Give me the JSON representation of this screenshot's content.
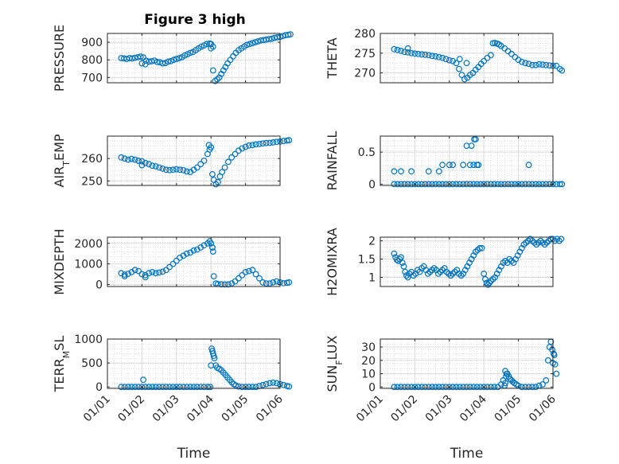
{
  "figure": {
    "title": "Figure 3 high",
    "xlabel": "Time",
    "xticks": [
      "01/01",
      "01/02",
      "01/03",
      "01/04",
      "01/05",
      "01/06"
    ],
    "marker_color": "#0072BD"
  },
  "chart_data": [
    {
      "type": "scatter",
      "ylabel": "PRESSURE",
      "ylim": [
        670,
        950
      ],
      "yticks": [
        700,
        800,
        900
      ],
      "grid": true,
      "x": [
        0.4,
        0.48,
        0.56,
        0.64,
        0.72,
        0.8,
        0.88,
        0.96,
        1.04,
        1.12,
        1.2,
        1.28,
        1.36,
        1.44,
        1.52,
        1.6,
        1.68,
        1.76,
        1.84,
        1.92,
        2.0,
        2.08,
        2.16,
        2.24,
        2.32,
        2.4,
        2.48,
        2.56,
        2.64,
        2.72,
        2.8,
        2.88,
        2.96,
        3.0,
        3.06,
        3.12,
        3.18,
        3.24,
        3.3,
        3.36,
        3.42,
        3.48,
        3.56,
        3.64,
        3.72,
        3.8,
        3.88,
        3.96,
        4.04,
        4.12,
        4.2,
        4.28,
        4.36,
        4.44,
        4.52,
        4.6,
        4.68,
        4.76,
        4.84,
        4.92,
        5.0,
        5.08,
        5.16,
        5.24,
        5.3,
        1.0,
        1.1,
        3.0,
        3.06
      ],
      "y": [
        810,
        808,
        805,
        810,
        808,
        812,
        815,
        818,
        814,
        795,
        790,
        792,
        796,
        788,
        786,
        780,
        782,
        790,
        793,
        800,
        805,
        810,
        815,
        825,
        832,
        840,
        845,
        855,
        865,
        875,
        882,
        890,
        893,
        890,
        740,
        680,
        690,
        700,
        720,
        740,
        760,
        780,
        800,
        820,
        840,
        855,
        865,
        875,
        885,
        890,
        895,
        900,
        905,
        910,
        912,
        915,
        918,
        920,
        925,
        928,
        930,
        935,
        940,
        942,
        945,
        780,
        775,
        865,
        875
      ]
    },
    {
      "type": "scatter",
      "ylabel": "THETA",
      "ylim": [
        267.5,
        280
      ],
      "yticks": [
        270,
        275,
        280
      ],
      "grid": true,
      "x": [
        0.4,
        0.5,
        0.6,
        0.7,
        0.8,
        0.9,
        1.0,
        1.1,
        1.2,
        1.3,
        1.4,
        1.5,
        1.6,
        1.7,
        1.8,
        1.9,
        2.0,
        2.1,
        2.2,
        2.28,
        2.36,
        2.44,
        2.52,
        2.6,
        2.68,
        2.76,
        2.84,
        2.92,
        3.0,
        3.1,
        3.2,
        3.26,
        3.32,
        3.38,
        3.44,
        3.5,
        3.6,
        3.7,
        3.8,
        3.9,
        4.0,
        4.1,
        4.2,
        4.3,
        4.4,
        4.5,
        4.6,
        4.7,
        4.8,
        4.9,
        5.0,
        5.1,
        5.2,
        5.26,
        0.8,
        2.3,
        2.5
      ],
      "y": [
        276.0,
        275.8,
        275.6,
        275.3,
        275.2,
        275.0,
        274.9,
        274.8,
        274.7,
        274.6,
        274.5,
        274.3,
        274.2,
        274.0,
        273.8,
        273.5,
        273.2,
        273.0,
        272.5,
        271.0,
        269.5,
        268.4,
        268.8,
        269.5,
        270.0,
        270.8,
        271.5,
        272.3,
        273.0,
        273.8,
        274.5,
        277.5,
        277.6,
        277.4,
        277.2,
        276.8,
        276.2,
        275.5,
        274.8,
        274.0,
        273.3,
        272.8,
        272.5,
        272.3,
        272.0,
        272.0,
        272.2,
        272.1,
        272.0,
        271.9,
        271.8,
        271.8,
        271.0,
        270.6,
        276.2,
        273.5,
        272.5
      ]
    },
    {
      "type": "scatter",
      "ylabel": "AIR_TEMP",
      "ylim": [
        248,
        270
      ],
      "yticks": [
        250,
        260
      ],
      "grid": true,
      "x": [
        0.4,
        0.5,
        0.6,
        0.7,
        0.8,
        0.9,
        1.0,
        1.1,
        1.2,
        1.3,
        1.4,
        1.5,
        1.6,
        1.7,
        1.8,
        1.9,
        2.0,
        2.1,
        2.2,
        2.3,
        2.4,
        2.5,
        2.6,
        2.7,
        2.8,
        2.9,
        2.96,
        3.0,
        3.04,
        3.08,
        3.14,
        3.2,
        3.26,
        3.32,
        3.4,
        3.5,
        3.6,
        3.7,
        3.8,
        3.9,
        4.0,
        4.1,
        4.2,
        4.3,
        4.4,
        4.5,
        4.6,
        4.7,
        4.8,
        4.9,
        5.0,
        5.1,
        5.2,
        5.26,
        0.9,
        1.0,
        2.94
      ],
      "y": [
        260.5,
        260.0,
        259.5,
        259.8,
        259.5,
        259.0,
        258.8,
        258.0,
        257.5,
        256.8,
        256.5,
        256.0,
        255.5,
        255.0,
        254.8,
        255.0,
        255.2,
        255.0,
        254.8,
        254.2,
        254.0,
        255.0,
        256.0,
        257.5,
        259.0,
        262.0,
        264.0,
        265.0,
        253.0,
        250.5,
        248.5,
        249.5,
        252.0,
        254.0,
        256.0,
        258.5,
        260.5,
        262.0,
        263.5,
        264.5,
        265.2,
        265.8,
        266.0,
        266.3,
        266.5,
        266.7,
        266.9,
        267.0,
        267.2,
        267.4,
        267.6,
        267.8,
        268.0,
        268.2,
        259.0,
        257.0,
        266.0
      ]
    },
    {
      "type": "scatter",
      "ylabel": "RAINFALL",
      "ylim": [
        -0.02,
        0.75
      ],
      "yticks": [
        0,
        0.5
      ],
      "grid": true,
      "x": [
        0.4,
        0.5,
        0.6,
        0.7,
        0.8,
        0.9,
        1.0,
        1.1,
        1.2,
        1.3,
        1.4,
        1.5,
        1.6,
        1.7,
        1.8,
        1.9,
        2.0,
        2.1,
        2.2,
        2.3,
        2.4,
        2.5,
        2.6,
        2.7,
        2.8,
        2.9,
        3.0,
        3.1,
        3.2,
        3.3,
        3.4,
        3.5,
        3.6,
        3.7,
        3.8,
        3.9,
        4.0,
        4.1,
        4.2,
        4.3,
        4.4,
        4.5,
        4.6,
        4.7,
        4.8,
        4.9,
        5.0,
        5.1,
        5.2,
        5.26,
        0.4,
        0.6,
        0.9,
        1.4,
        1.7,
        1.8,
        2.0,
        2.1,
        2.4,
        2.5,
        2.6,
        2.64,
        2.7,
        2.72,
        2.76,
        2.8,
        2.84,
        4.3
      ],
      "y": [
        0,
        0,
        0,
        0,
        0,
        0,
        0,
        0,
        0,
        0,
        0,
        0,
        0,
        0,
        0,
        0,
        0,
        0,
        0,
        0,
        0,
        0,
        0,
        0,
        0,
        0,
        0,
        0,
        0,
        0,
        0,
        0,
        0,
        0,
        0,
        0,
        0,
        0,
        0,
        0,
        0,
        0,
        0,
        0,
        0,
        0,
        0,
        0,
        0,
        0,
        0.2,
        0.2,
        0.2,
        0.2,
        0.2,
        0.3,
        0.3,
        0.3,
        0.3,
        0.6,
        0.3,
        0.6,
        0.3,
        0.7,
        0.7,
        0.3,
        0.3,
        0.3
      ]
    },
    {
      "type": "scatter",
      "ylabel": "MIXDEPTH",
      "ylim": [
        -100,
        2300
      ],
      "yticks": [
        0,
        1000,
        2000
      ],
      "grid": true,
      "x": [
        0.4,
        0.5,
        0.6,
        0.7,
        0.8,
        0.9,
        1.0,
        1.1,
        1.2,
        1.3,
        1.4,
        1.5,
        1.6,
        1.7,
        1.8,
        1.9,
        2.0,
        2.1,
        2.2,
        2.3,
        2.4,
        2.5,
        2.6,
        2.7,
        2.8,
        2.9,
        2.96,
        3.0,
        3.04,
        3.08,
        3.14,
        3.2,
        3.3,
        3.4,
        3.5,
        3.6,
        3.7,
        3.8,
        3.9,
        4.0,
        4.1,
        4.2,
        4.3,
        4.4,
        4.5,
        4.6,
        4.7,
        4.8,
        4.9,
        5.0,
        5.1,
        5.2,
        5.26,
        3.04,
        3.06,
        0.5,
        1.1
      ],
      "y": [
        550,
        480,
        520,
        600,
        700,
        650,
        500,
        450,
        550,
        600,
        550,
        580,
        620,
        700,
        850,
        1000,
        1150,
        1300,
        1400,
        1500,
        1550,
        1650,
        1700,
        1800,
        1900,
        2000,
        2100,
        2000,
        1800,
        400,
        50,
        20,
        10,
        0,
        0,
        50,
        150,
        300,
        450,
        600,
        650,
        700,
        500,
        300,
        100,
        50,
        50,
        100,
        150,
        100,
        60,
        80,
        100,
        1800,
        1600,
        400,
        350
      ]
    },
    {
      "type": "scatter",
      "ylabel": "H2OMIXRA",
      "ylim": [
        0.75,
        2.1
      ],
      "yticks": [
        1,
        1.5,
        2
      ],
      "grid": true,
      "x": [
        0.4,
        0.44,
        0.48,
        0.52,
        0.56,
        0.6,
        0.64,
        0.68,
        0.72,
        0.76,
        0.8,
        0.84,
        0.9,
        0.96,
        1.02,
        1.08,
        1.14,
        1.2,
        1.26,
        1.32,
        1.38,
        1.44,
        1.5,
        1.56,
        1.62,
        1.68,
        1.74,
        1.8,
        1.86,
        1.92,
        1.98,
        2.04,
        2.1,
        2.16,
        2.22,
        2.28,
        2.34,
        2.4,
        2.46,
        2.52,
        2.58,
        2.64,
        2.7,
        2.76,
        2.82,
        2.88,
        2.94,
        3.0,
        3.04,
        3.08,
        3.12,
        3.16,
        3.2,
        3.26,
        3.32,
        3.38,
        3.44,
        3.5,
        3.56,
        3.62,
        3.68,
        3.74,
        3.8,
        3.86,
        3.92,
        3.98,
        4.04,
        4.1,
        4.16,
        4.22,
        4.28,
        4.34,
        4.4,
        4.46,
        4.52,
        4.58,
        4.64,
        4.7,
        4.76,
        4.82,
        4.88,
        4.94,
        5.0,
        5.06,
        5.12,
        5.18,
        5.24
      ],
      "y": [
        1.65,
        1.55,
        1.48,
        1.45,
        1.5,
        1.55,
        1.4,
        1.3,
        1.15,
        1.05,
        1.0,
        1.1,
        1.15,
        1.05,
        1.1,
        1.2,
        1.15,
        1.25,
        1.3,
        1.2,
        1.1,
        1.15,
        1.2,
        1.25,
        1.2,
        1.1,
        1.15,
        1.2,
        1.25,
        1.15,
        1.1,
        1.05,
        1.1,
        1.15,
        1.2,
        1.1,
        1.05,
        1.1,
        1.2,
        1.3,
        1.4,
        1.5,
        1.6,
        1.7,
        1.75,
        1.8,
        1.8,
        1.1,
        0.95,
        0.85,
        0.8,
        0.85,
        0.9,
        0.95,
        1.0,
        1.1,
        1.2,
        1.3,
        1.4,
        1.45,
        1.4,
        1.5,
        1.45,
        1.4,
        1.5,
        1.6,
        1.7,
        1.8,
        1.9,
        1.95,
        2.0,
        2.05,
        2.0,
        1.95,
        1.9,
        1.95,
        2.0,
        1.95,
        1.9,
        1.95,
        2.0,
        2.05,
        2.05,
        2.0,
        2.05,
        2.0,
        2.05
      ]
    },
    {
      "type": "scatter",
      "ylabel": "TERR_MSL",
      "ylim": [
        -30,
        1000
      ],
      "yticks": [
        0,
        500,
        1000
      ],
      "grid": true,
      "x": [
        0.4,
        0.5,
        0.6,
        0.7,
        0.8,
        0.9,
        1.0,
        1.1,
        1.2,
        1.3,
        1.4,
        1.5,
        1.6,
        1.7,
        1.8,
        1.9,
        2.0,
        2.1,
        2.2,
        2.3,
        2.4,
        2.5,
        2.6,
        2.7,
        2.8,
        2.9,
        2.98,
        3.0,
        3.02,
        3.04,
        3.06,
        3.08,
        3.1,
        3.14,
        3.18,
        3.24,
        3.3,
        3.36,
        3.42,
        3.48,
        3.54,
        3.6,
        3.66,
        3.72,
        3.8,
        3.9,
        4.0,
        4.1,
        4.2,
        4.3,
        4.4,
        4.5,
        4.6,
        4.7,
        4.8,
        4.9,
        5.0,
        5.1,
        5.2,
        5.26,
        1.04
      ],
      "y": [
        0,
        0,
        0,
        0,
        0,
        0,
        0,
        0,
        0,
        0,
        0,
        0,
        0,
        0,
        0,
        0,
        0,
        0,
        0,
        0,
        0,
        0,
        0,
        0,
        0,
        0,
        0,
        450,
        800,
        750,
        700,
        650,
        600,
        450,
        400,
        380,
        350,
        300,
        250,
        200,
        150,
        100,
        60,
        30,
        10,
        0,
        0,
        0,
        0,
        0,
        20,
        40,
        60,
        80,
        90,
        80,
        60,
        40,
        20,
        10,
        150
      ]
    },
    {
      "type": "scatter",
      "ylabel": "SUN_FLUX",
      "ylim": [
        -1,
        36
      ],
      "yticks": [
        0,
        10,
        20,
        30
      ],
      "grid": true,
      "x": [
        0.4,
        0.5,
        0.6,
        0.7,
        0.8,
        0.9,
        1.0,
        1.1,
        1.2,
        1.3,
        1.4,
        1.5,
        1.6,
        1.7,
        1.8,
        1.9,
        2.0,
        2.1,
        2.2,
        2.3,
        2.4,
        2.5,
        2.6,
        2.7,
        2.8,
        2.9,
        3.0,
        3.1,
        3.2,
        3.3,
        3.4,
        3.5,
        3.56,
        3.62,
        3.68,
        3.72,
        3.76,
        3.8,
        3.84,
        3.88,
        3.94,
        4.0,
        4.1,
        4.2,
        4.3,
        4.4,
        4.5,
        4.6,
        4.7,
        4.8,
        4.86,
        4.9,
        4.94,
        4.98,
        5.02,
        5.06,
        5.1,
        3.6,
        3.62,
        3.64,
        3.66,
        5.0,
        5.04
      ],
      "y": [
        0,
        0,
        0,
        0,
        0,
        0,
        0,
        0,
        0,
        0,
        0,
        0,
        0,
        0,
        0,
        0,
        0,
        0,
        0,
        0,
        0,
        0,
        0,
        0,
        0,
        0,
        0,
        0,
        0,
        0,
        0,
        2,
        5,
        12,
        10,
        8,
        6,
        5,
        4,
        3,
        2,
        1,
        0,
        0,
        0,
        0,
        0,
        1,
        2,
        5,
        20,
        30,
        34,
        28,
        25,
        17,
        10,
        1,
        3,
        8,
        10,
        18,
        24
      ]
    }
  ]
}
